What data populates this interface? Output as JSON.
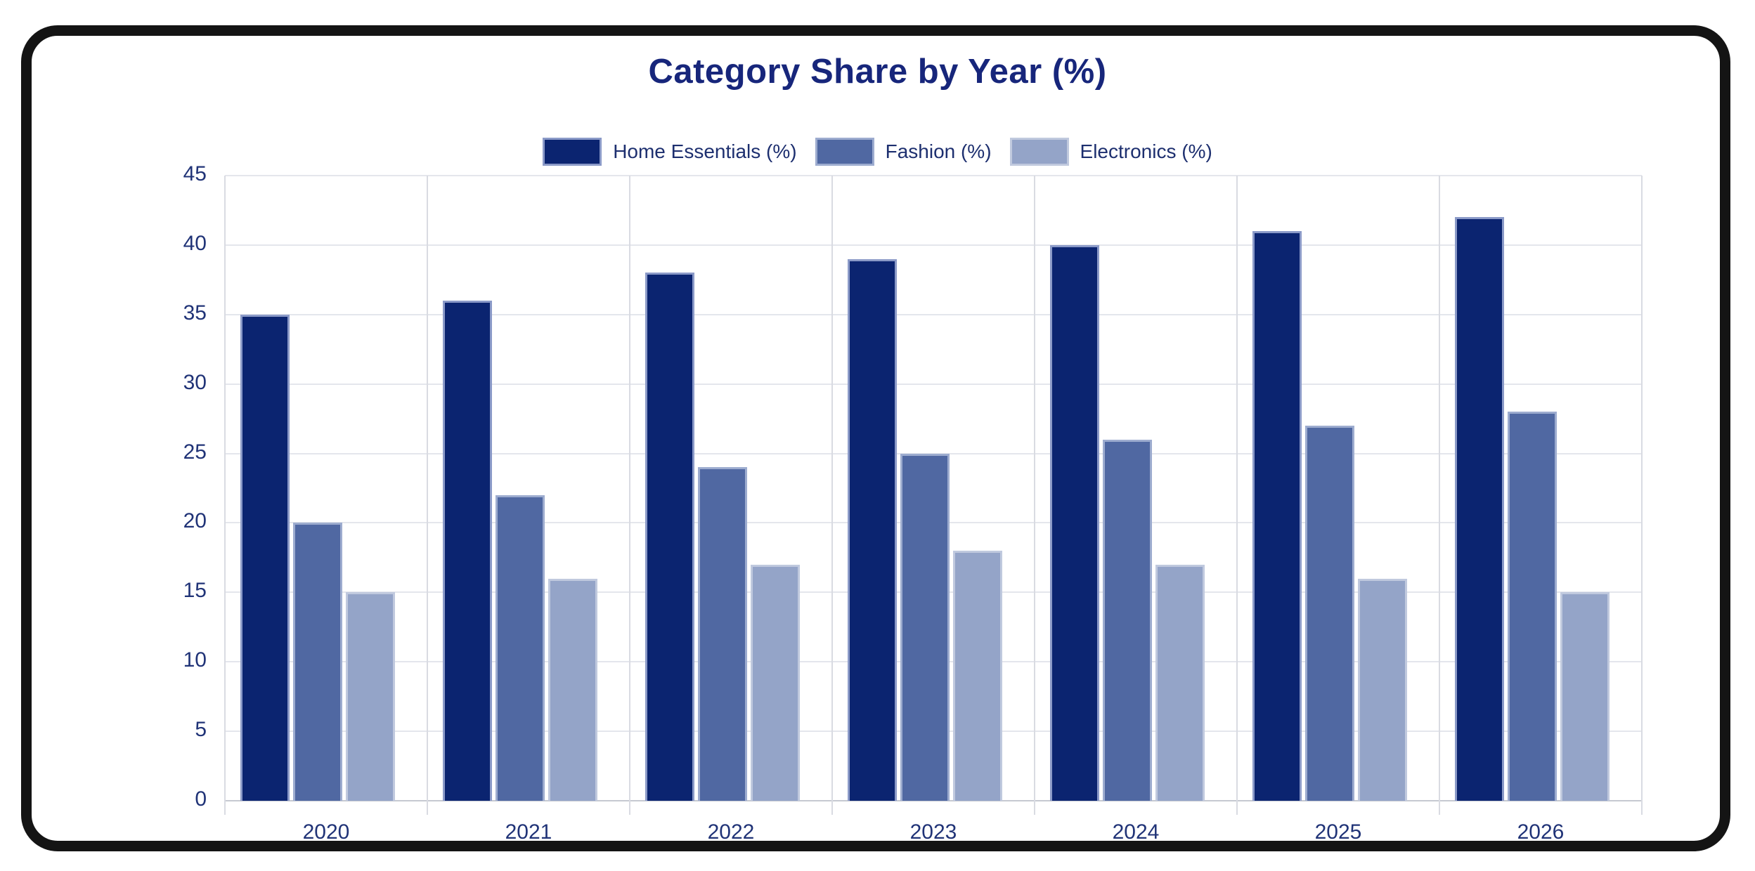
{
  "title": "Category Share by Year (%)",
  "chart_data": {
    "type": "bar",
    "title": "Category Share by Year (%)",
    "categories": [
      "2020",
      "2021",
      "2022",
      "2023",
      "2024",
      "2025",
      "2026"
    ],
    "series": [
      {
        "name": "Home Essentials (%)",
        "color": "#0b2470",
        "border_color": "#8b9ac8",
        "values": [
          35,
          36,
          38,
          39,
          40,
          41,
          42
        ]
      },
      {
        "name": "Fashion (%)",
        "color": "#5068a2",
        "border_color": "#9daccf",
        "values": [
          20,
          22,
          24,
          25,
          26,
          27,
          28
        ]
      },
      {
        "name": "Electronics (%)",
        "color": "#94a4c8",
        "border_color": "#c0c9de",
        "values": [
          15,
          16,
          17,
          18,
          17,
          16,
          15
        ]
      }
    ],
    "xlabel": "",
    "ylabel": "",
    "ylim": [
      0,
      45
    ],
    "ytick_step": 5,
    "yticks": [
      "0",
      "5",
      "10",
      "15",
      "20",
      "25",
      "30",
      "35",
      "40",
      "45"
    ],
    "grid": true,
    "legend_position": "top"
  },
  "colors": {
    "title": "#17267b",
    "tick_label": "#203377",
    "legend_label": "#1d2f6f",
    "grid_horizontal": "#e4e6ec",
    "grid_vertical": "#d9dbe2",
    "axis_line": "#c6c9d1",
    "frame": "#141414",
    "background": "#ffffff"
  }
}
